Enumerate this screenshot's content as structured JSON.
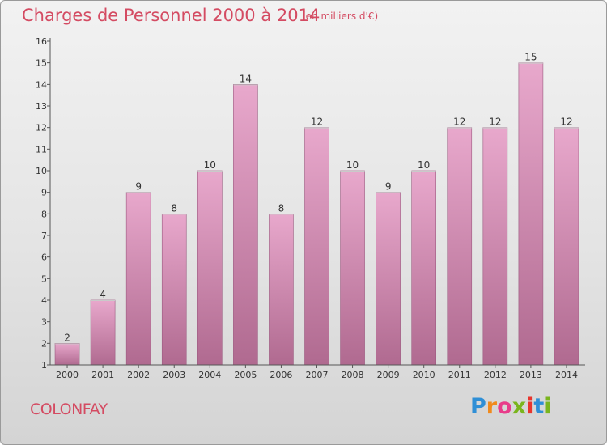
{
  "header": {
    "title": "Charges de Personnel 2000 à 2014",
    "subtitle": "(en milliers d'€)"
  },
  "footer": {
    "commune": "COLONFAY",
    "logo_letters": [
      "P",
      "r",
      "o",
      "x",
      "i",
      "t",
      "i"
    ],
    "logo_colors": [
      "#2f8fd6",
      "#f08a1c",
      "#e83c8a",
      "#7ab51d",
      "#e8352d",
      "#2f8fd6",
      "#7ab51d"
    ]
  },
  "colors": {
    "bar_top": "#e8a8cc",
    "bar_bottom": "#b06a90",
    "title": "#d44b62"
  },
  "chart_data": {
    "type": "bar",
    "title": "Charges de Personnel 2000 à 2014",
    "subtitle": "(en milliers d'€)",
    "categories": [
      "2000",
      "2001",
      "2002",
      "2003",
      "2004",
      "2005",
      "2006",
      "2007",
      "2008",
      "2009",
      "2010",
      "2011",
      "2012",
      "2013",
      "2014"
    ],
    "values": [
      2,
      4,
      9,
      8,
      10,
      14,
      8,
      12,
      10,
      9,
      10,
      12,
      12,
      15,
      12
    ],
    "data_labels": [
      "2",
      "4",
      "9",
      "8",
      "10",
      "14",
      "8",
      "12",
      "10",
      "9",
      "10",
      "12",
      "12",
      "15",
      "12"
    ],
    "y_ticks": [
      1,
      2,
      3,
      4,
      5,
      6,
      7,
      8,
      9,
      10,
      11,
      12,
      13,
      14,
      15,
      16
    ],
    "ylim": [
      1,
      16
    ],
    "grid": false,
    "legend": "none"
  }
}
